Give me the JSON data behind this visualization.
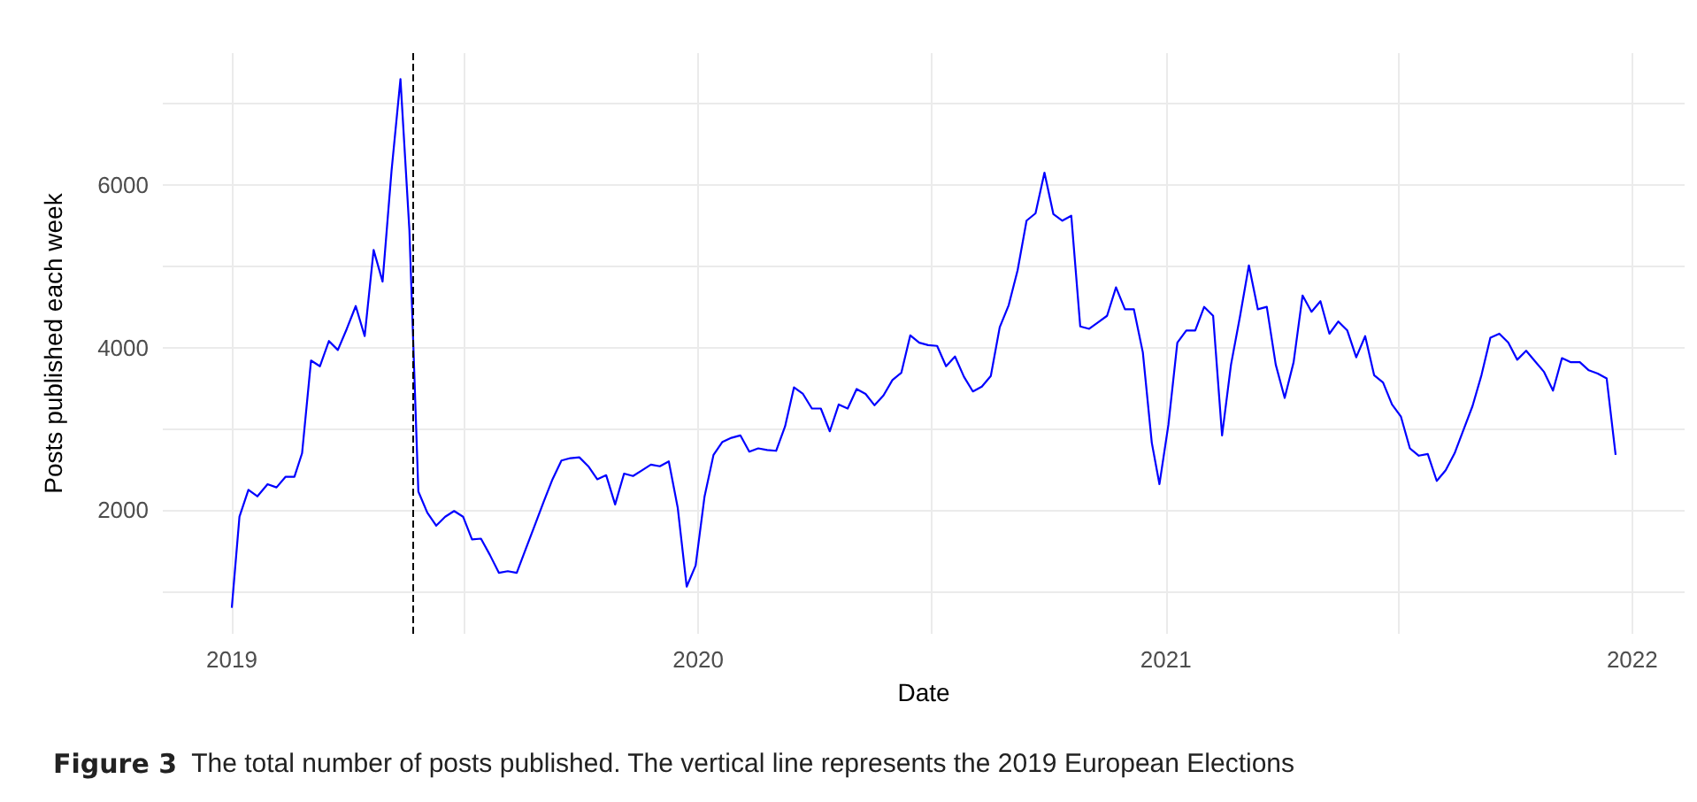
{
  "chart_data": {
    "type": "line",
    "xlabel": "Date",
    "ylabel": "Posts published each week",
    "x": [
      "2019-01-01",
      "2019-01-07",
      "2019-01-14",
      "2019-01-21",
      "2019-01-29",
      "2019-02-05",
      "2019-02-12",
      "2019-02-19",
      "2019-02-25",
      "2019-03-04",
      "2019-03-11",
      "2019-03-18",
      "2019-03-25",
      "2019-04-01",
      "2019-04-08",
      "2019-04-15",
      "2019-04-22",
      "2019-04-29",
      "2019-05-06",
      "2019-05-13",
      "2019-05-20",
      "2019-05-27",
      "2019-06-03",
      "2019-06-10",
      "2019-06-17",
      "2019-06-24",
      "2019-07-01",
      "2019-07-08",
      "2019-07-15",
      "2019-07-22",
      "2019-07-29",
      "2019-08-05",
      "2019-08-12",
      "2019-08-19",
      "2019-08-26",
      "2019-09-02",
      "2019-09-09",
      "2019-09-16",
      "2019-09-23",
      "2019-09-30",
      "2019-10-07",
      "2019-10-14",
      "2019-10-21",
      "2019-10-28",
      "2019-11-04",
      "2019-11-11",
      "2019-11-18",
      "2019-11-25",
      "2019-12-02",
      "2019-12-09",
      "2019-12-16",
      "2019-12-23",
      "2019-12-30",
      "2020-01-06",
      "2020-01-13",
      "2020-01-20",
      "2020-01-27",
      "2020-02-03",
      "2020-02-10",
      "2020-02-17",
      "2020-02-24",
      "2020-03-02",
      "2020-03-09",
      "2020-03-16",
      "2020-03-23",
      "2020-03-30",
      "2020-04-06",
      "2020-04-13",
      "2020-04-20",
      "2020-04-27",
      "2020-05-04",
      "2020-05-11",
      "2020-05-18",
      "2020-05-25",
      "2020-06-01",
      "2020-06-08",
      "2020-06-15",
      "2020-06-22",
      "2020-06-29",
      "2020-07-06",
      "2020-07-13",
      "2020-07-20",
      "2020-07-27",
      "2020-08-03",
      "2020-08-10",
      "2020-08-17",
      "2020-08-24",
      "2020-08-31",
      "2020-09-07",
      "2020-09-14",
      "2020-09-21",
      "2020-09-28",
      "2020-10-05",
      "2020-10-12",
      "2020-10-19",
      "2020-10-26",
      "2020-11-02",
      "2020-11-09",
      "2020-11-16",
      "2020-11-23",
      "2020-11-30",
      "2020-12-07",
      "2020-12-14",
      "2020-12-21",
      "2020-12-27",
      "2021-01-03",
      "2021-01-10",
      "2021-01-17",
      "2021-01-24",
      "2021-01-31",
      "2021-02-07",
      "2021-02-14",
      "2021-02-21",
      "2021-02-28",
      "2021-03-07",
      "2021-03-14",
      "2021-03-21",
      "2021-03-28",
      "2021-04-04",
      "2021-04-11",
      "2021-04-18",
      "2021-04-25",
      "2021-05-02",
      "2021-05-09",
      "2021-05-16",
      "2021-05-23",
      "2021-05-30",
      "2021-06-06",
      "2021-06-13",
      "2021-06-20",
      "2021-06-27",
      "2021-07-04",
      "2021-07-11",
      "2021-07-18",
      "2021-07-25",
      "2021-08-01",
      "2021-08-08",
      "2021-08-15",
      "2021-08-22",
      "2021-08-29",
      "2021-09-05",
      "2021-09-12",
      "2021-09-19",
      "2021-09-26",
      "2021-10-03",
      "2021-10-10",
      "2021-10-17",
      "2021-10-24",
      "2021-10-31",
      "2021-11-07",
      "2021-11-14",
      "2021-11-21",
      "2021-11-28",
      "2021-12-05",
      "2021-12-12",
      "2021-12-19"
    ],
    "series": [
      {
        "color": "#0000ff",
        "values": [
          800,
          1920,
          2250,
          2170,
          2320,
          2280,
          2410,
          2410,
          2700,
          3840,
          3770,
          4080,
          3970,
          4230,
          4510,
          4140,
          5200,
          4810,
          6170,
          7300,
          5440,
          2230,
          1970,
          1810,
          1920,
          1990,
          1920,
          1640,
          1650,
          1450,
          1230,
          1250,
          1230,
          1520,
          1810,
          2100,
          2380,
          2610,
          2640,
          2650,
          2540,
          2380,
          2430,
          2070,
          2450,
          2420,
          2490,
          2560,
          2540,
          2600,
          2030,
          1060,
          1320,
          2170,
          2680,
          2840,
          2890,
          2920,
          2720,
          2760,
          2740,
          2730,
          3030,
          3510,
          3430,
          3250,
          3250,
          2970,
          3300,
          3250,
          3490,
          3430,
          3290,
          3410,
          3600,
          3690,
          4150,
          4060,
          4030,
          4020,
          3770,
          3890,
          3640,
          3460,
          3520,
          3650,
          4250,
          4520,
          4950,
          5560,
          5650,
          6150,
          5640,
          5560,
          5620,
          4260,
          4230,
          4310,
          4390,
          4740,
          4470,
          4470,
          3940,
          2830,
          2320,
          3050,
          4060,
          4210,
          4210,
          4500,
          4390,
          2920,
          3790,
          4380,
          5010,
          4470,
          4500,
          3790,
          3380,
          3820,
          4640,
          4440,
          4570,
          4170,
          4320,
          4210,
          3880,
          4140,
          3660,
          3570,
          3300,
          3150,
          2760,
          2670,
          2690,
          2360,
          2490,
          2700,
          2990,
          3280,
          3660,
          4120,
          4170,
          4060,
          3850,
          3960,
          3830,
          3700,
          3470,
          3870,
          3820,
          3820,
          3720,
          3680,
          3620,
          2680
        ]
      }
    ],
    "xlim": [
      "2018-11-08",
      "2022-02-11"
    ],
    "xticks": [
      {
        "value": "2019-01-01",
        "label": "2019"
      },
      {
        "value": "2019-07-02",
        "label": null
      },
      {
        "value": "2020-01-01",
        "label": "2020"
      },
      {
        "value": "2020-07-02",
        "label": null
      },
      {
        "value": "2021-01-01",
        "label": "2021"
      },
      {
        "value": "2021-07-02",
        "label": null
      },
      {
        "value": "2022-01-01",
        "label": "2022"
      }
    ],
    "ylim": [
      480,
      7620
    ],
    "yticks": [
      {
        "value": 1000,
        "label": null
      },
      2000,
      {
        "value": 3000,
        "label": null
      },
      4000,
      {
        "value": 5000,
        "label": null
      },
      6000,
      {
        "value": 7000,
        "label": null
      }
    ],
    "grid": true,
    "marker": "none",
    "line_style": "solid",
    "ref_lines": [
      {
        "axis": "x",
        "value": "2019-05-23",
        "color": "#000000",
        "line_style": "dashed"
      }
    ],
    "annotations": [
      "Figure 3  The total number of posts published. The vertical line represents the 2019 European Elections"
    ]
  }
}
